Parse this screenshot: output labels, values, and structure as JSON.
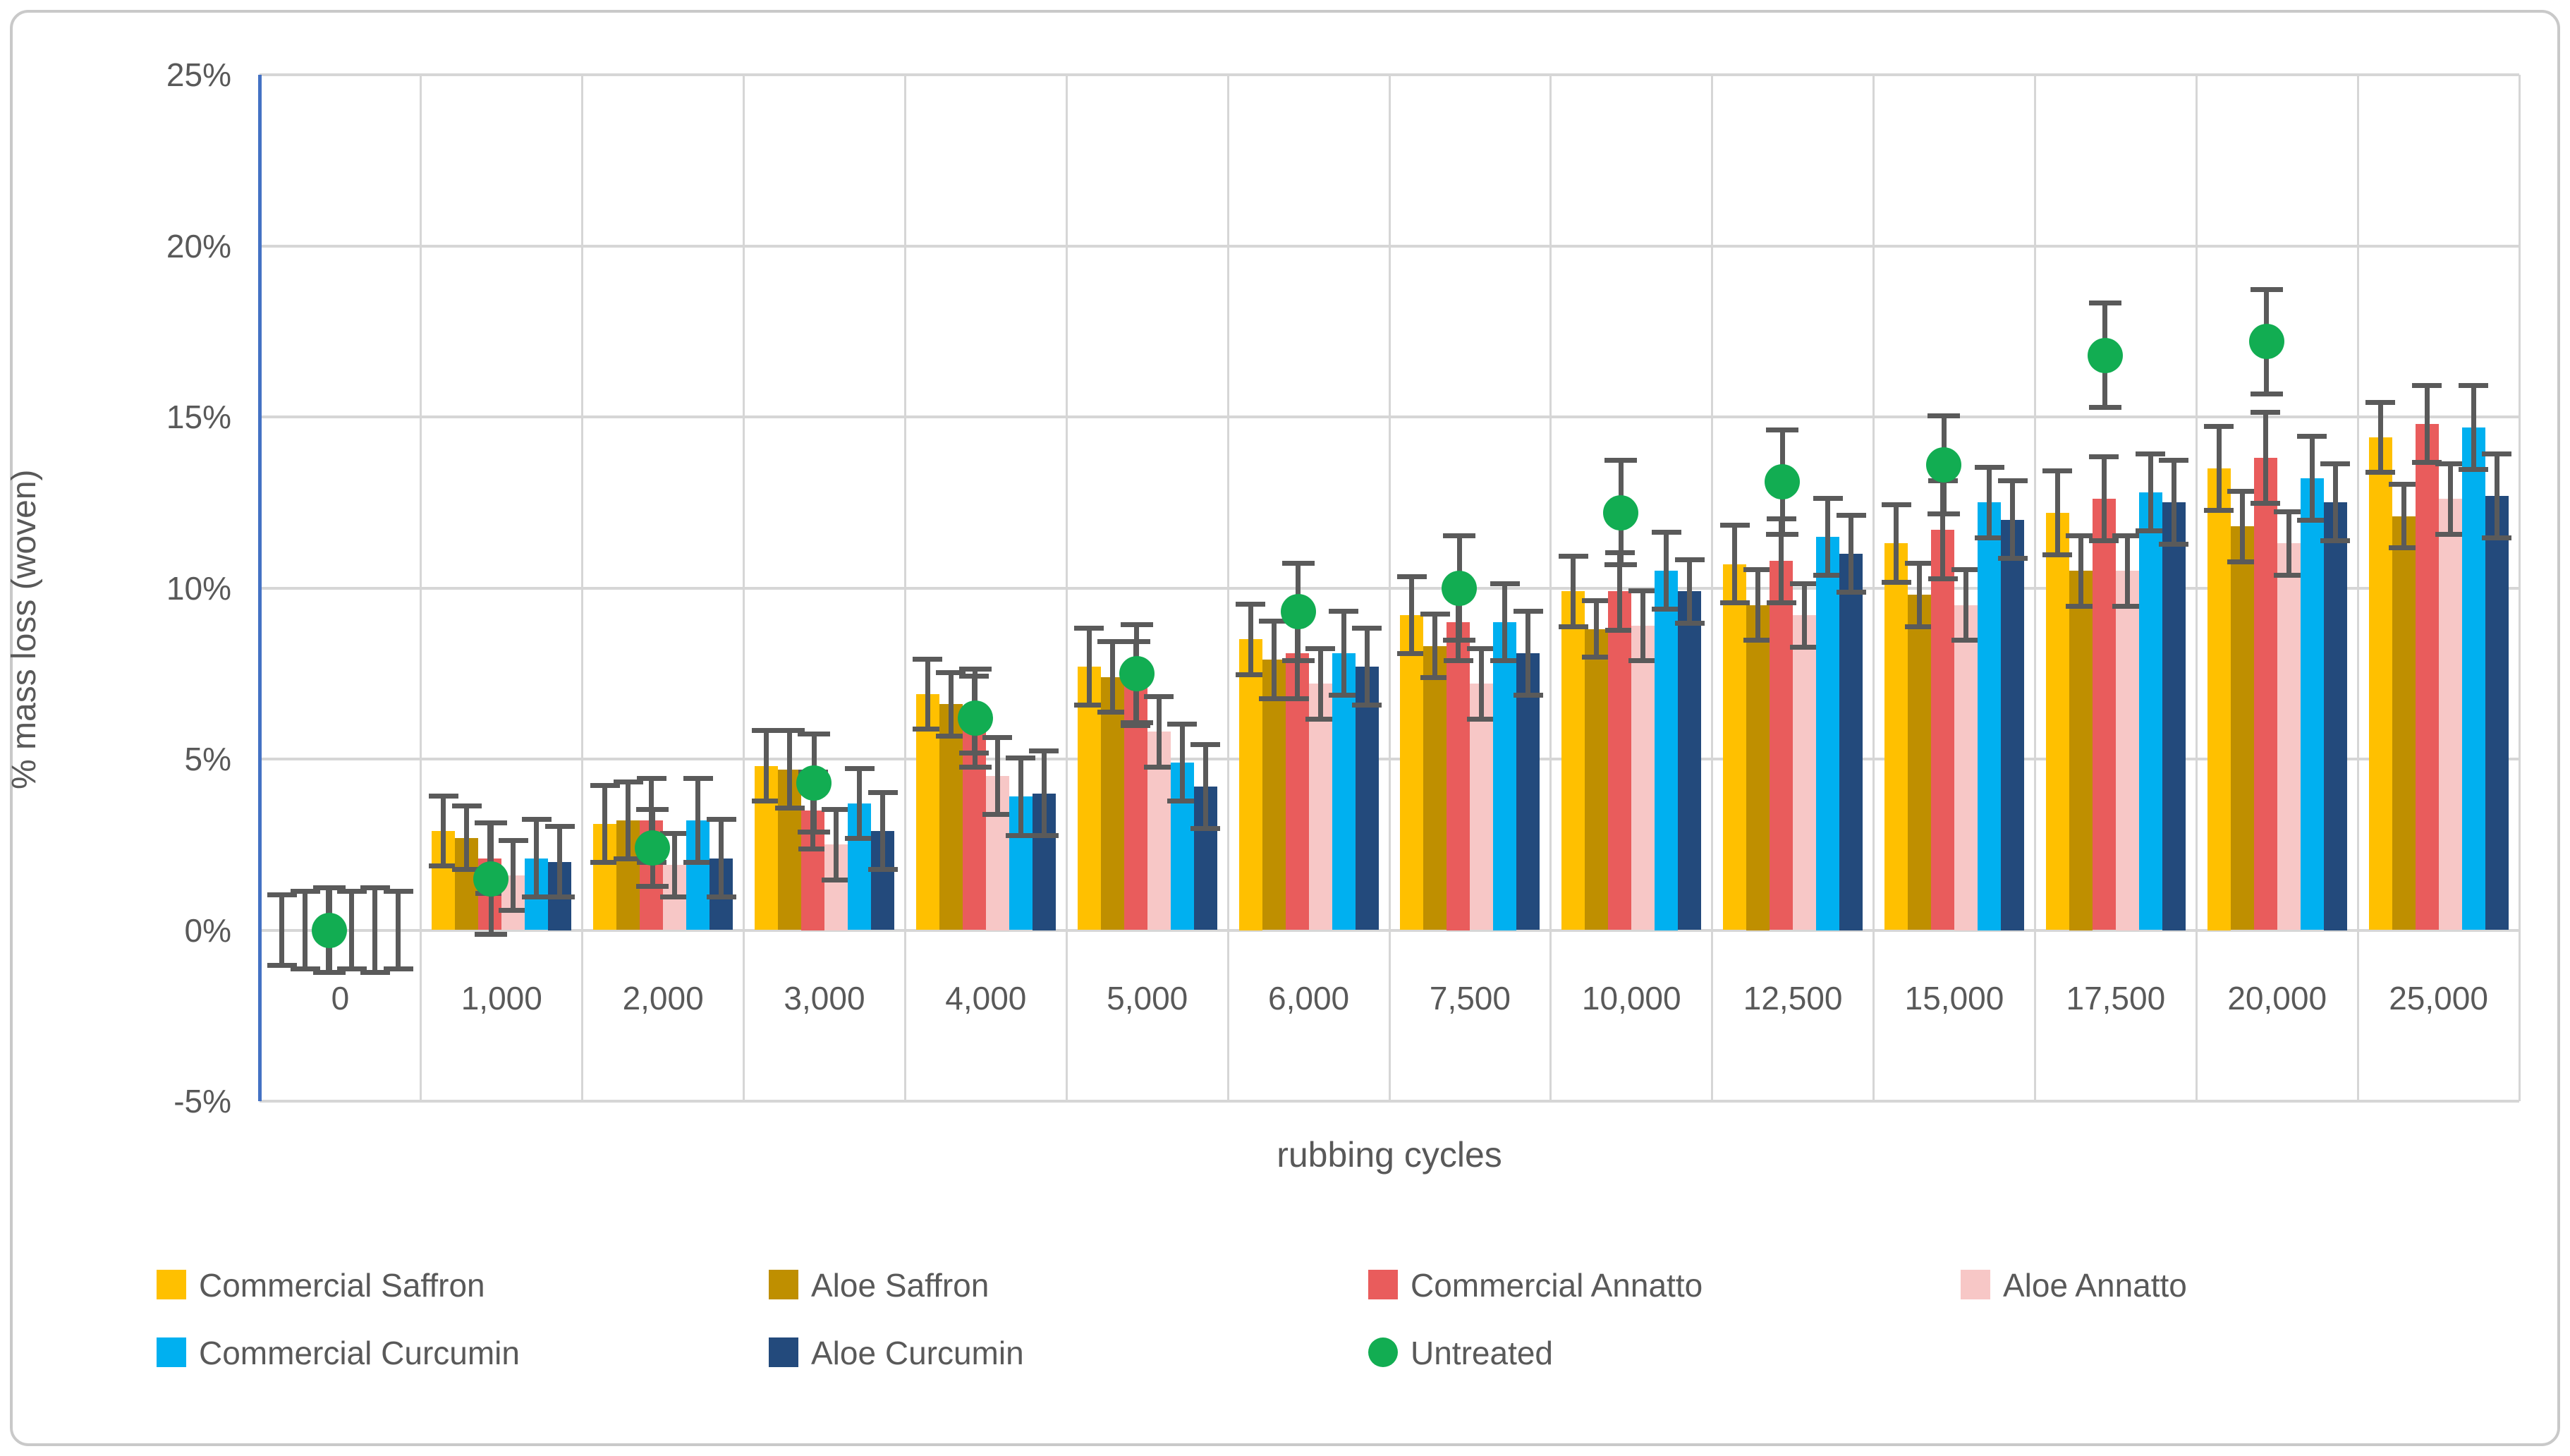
{
  "chart_data": {
    "type": "bar",
    "title": "",
    "xlabel": "rubbing cycles",
    "ylabel": "% mass loss (woven)",
    "ylim": [
      -5,
      25
    ],
    "yticks": [
      -5,
      0,
      5,
      10,
      15,
      20,
      25
    ],
    "ytick_labels": [
      "-5%",
      "0%",
      "5%",
      "10%",
      "15%",
      "20%",
      "25%"
    ],
    "grid": true,
    "legend_position": "bottom-left",
    "categories": [
      "0",
      "1,000",
      "2,000",
      "3,000",
      "4,000",
      "5,000",
      "6,000",
      "7,500",
      "10,000",
      "12,500",
      "15,000",
      "17,500",
      "20,000",
      "25,000"
    ],
    "series": [
      {
        "name": "Commercial Saffron",
        "type": "bar",
        "color": "#FFC000",
        "values": [
          0,
          2.9,
          3.1,
          4.8,
          6.9,
          7.7,
          8.5,
          9.2,
          9.9,
          10.7,
          11.3,
          12.2,
          13.5,
          14.4
        ],
        "errors": [
          1.1,
          1.1,
          1.2,
          1.1,
          1.1,
          1.2,
          1.1,
          1.2,
          1.1,
          1.2,
          1.2,
          1.3,
          1.3,
          1.1
        ]
      },
      {
        "name": "Aloe Saffron",
        "type": "bar",
        "color": "#BF8F00",
        "values": [
          0,
          2.7,
          3.2,
          4.7,
          6.6,
          7.4,
          7.9,
          8.3,
          8.8,
          9.5,
          9.8,
          10.5,
          11.8,
          12.1
        ],
        "errors": [
          1.2,
          1.0,
          1.2,
          1.2,
          1.0,
          1.1,
          1.2,
          1.0,
          0.9,
          1.1,
          1.0,
          1.1,
          1.1,
          1.0
        ]
      },
      {
        "name": "Commercial Annatto",
        "type": "bar",
        "color": "#E95C5C",
        "values": [
          0,
          2.1,
          3.2,
          3.5,
          6.3,
          7.2,
          8.1,
          9.0,
          9.9,
          10.8,
          11.7,
          12.6,
          13.8,
          14.8
        ],
        "errors": [
          1.3,
          1.1,
          1.3,
          1.2,
          1.2,
          1.3,
          1.4,
          1.2,
          1.2,
          1.3,
          1.5,
          1.3,
          1.4,
          1.2
        ]
      },
      {
        "name": "Aloe Annatto",
        "type": "bar",
        "color": "#F7C7C6",
        "values": [
          0,
          1.6,
          1.9,
          2.5,
          4.5,
          5.8,
          7.2,
          7.2,
          8.9,
          9.2,
          9.5,
          10.5,
          11.3,
          12.6
        ],
        "errors": [
          1.2,
          1.1,
          1.0,
          1.1,
          1.2,
          1.1,
          1.1,
          1.1,
          1.1,
          1.0,
          1.1,
          1.1,
          1.0,
          1.1
        ]
      },
      {
        "name": "Commercial Curcumin",
        "type": "bar",
        "color": "#00B0F0",
        "values": [
          0,
          2.1,
          3.2,
          3.7,
          3.9,
          4.9,
          8.1,
          9.0,
          10.5,
          11.5,
          12.5,
          12.8,
          13.2,
          14.7
        ],
        "errors": [
          1.3,
          1.2,
          1.3,
          1.1,
          1.2,
          1.2,
          1.3,
          1.2,
          1.2,
          1.2,
          1.1,
          1.2,
          1.3,
          1.3
        ]
      },
      {
        "name": "Aloe Curcumin",
        "type": "bar",
        "color": "#234A7C",
        "values": [
          0,
          2.0,
          2.1,
          2.9,
          4.0,
          4.2,
          7.7,
          8.1,
          9.9,
          11.0,
          12.0,
          12.5,
          12.5,
          12.7
        ],
        "errors": [
          1.2,
          1.1,
          1.2,
          1.2,
          1.3,
          1.3,
          1.2,
          1.3,
          1.0,
          1.2,
          1.2,
          1.3,
          1.2,
          1.3
        ]
      },
      {
        "name": "Untreated",
        "type": "scatter",
        "color": "#12AD52",
        "values": [
          0,
          1.5,
          2.4,
          4.3,
          6.2,
          7.5,
          9.3,
          10.0,
          12.2,
          13.1,
          13.6,
          16.8,
          17.2,
          null
        ],
        "errors": [
          1.3,
          1.7,
          1.2,
          1.5,
          1.5,
          1.5,
          1.5,
          1.6,
          1.6,
          1.6,
          1.5,
          1.6,
          1.6,
          null
        ]
      }
    ],
    "colors": {
      "errorbar": "#5A5A5A",
      "grid": "#D6D6D6",
      "axis_line": "#4472C4",
      "text": "#595959",
      "frame_border": "#C9C9C9"
    }
  }
}
